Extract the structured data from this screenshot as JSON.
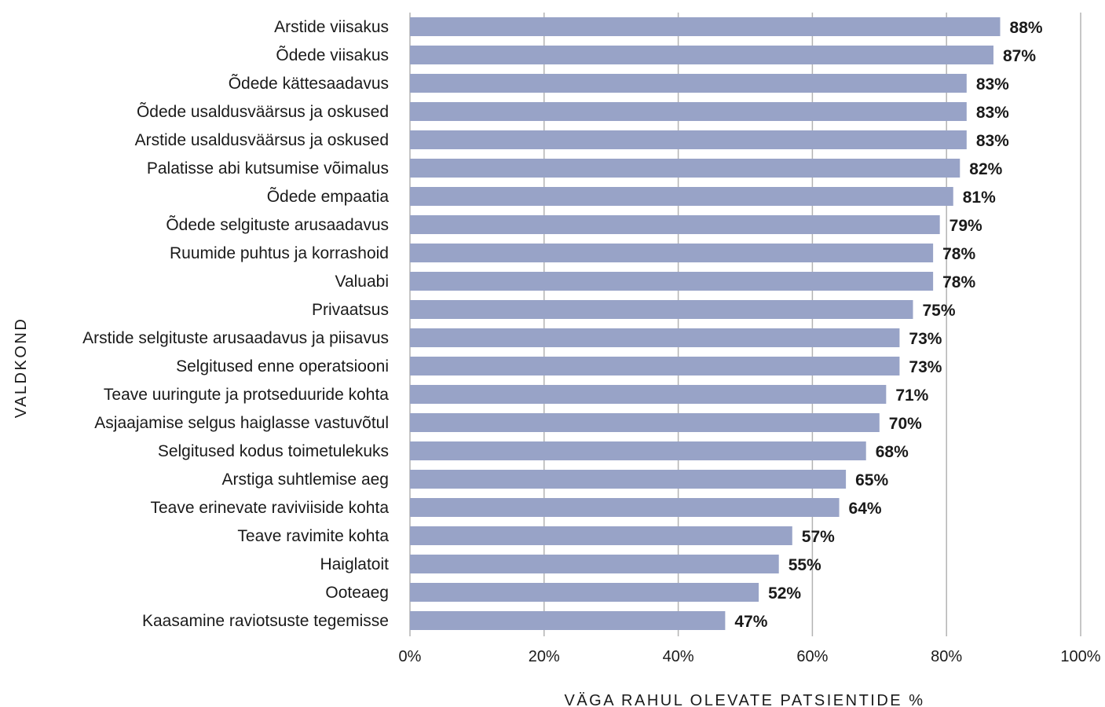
{
  "chart_data": {
    "type": "bar",
    "orientation": "horizontal",
    "categories": [
      "Arstide viisakus",
      "Õdede viisakus",
      "Õdede kättesaadavus",
      "Õdede usaldusväärsus ja oskused",
      "Arstide usaldusväärsus ja oskused",
      "Palatisse abi kutsumise võimalus",
      "Õdede empaatia",
      "Õdede selgituste arusaadavus",
      "Ruumide puhtus ja korrashoid",
      "Valuabi",
      "Privaatsus",
      "Arstide selgituste arusaadavus ja piisavus",
      "Selgitused enne operatsiooni",
      "Teave uuringute ja protseduuride kohta",
      "Asjaajamise selgus haiglasse vastuvõtul",
      "Selgitused kodus toimetulekuks",
      "Arstiga suhtlemise aeg",
      "Teave erinevate raviviiside kohta",
      "Teave ravimite kohta",
      "Haiglatoit",
      "Ooteaeg",
      "Kaasamine raviotsuste tegemisse"
    ],
    "values": [
      88,
      87,
      83,
      83,
      83,
      82,
      81,
      79,
      78,
      78,
      75,
      73,
      73,
      71,
      70,
      68,
      65,
      64,
      57,
      55,
      52,
      47
    ],
    "value_labels": [
      "88%",
      "87%",
      "83%",
      "83%",
      "83%",
      "82%",
      "81%",
      "79%",
      "78%",
      "78%",
      "75%",
      "73%",
      "73%",
      "71%",
      "70%",
      "68%",
      "65%",
      "64%",
      "57%",
      "55%",
      "52%",
      "47%"
    ],
    "xlabel": "VÄGA RAHUL OLEVATE PATSIENTIDE %",
    "ylabel": "VALDKOND",
    "xlim": [
      0,
      100
    ],
    "xticks": [
      0,
      20,
      40,
      60,
      80,
      100
    ],
    "xtick_labels": [
      "0%",
      "20%",
      "40%",
      "60%",
      "80%",
      "100%"
    ],
    "grid": "vertical",
    "legend": "none",
    "colors": {
      "bar": "#98a3c7",
      "grid": "#b3b3b3",
      "text": "#1a1a1a"
    }
  }
}
